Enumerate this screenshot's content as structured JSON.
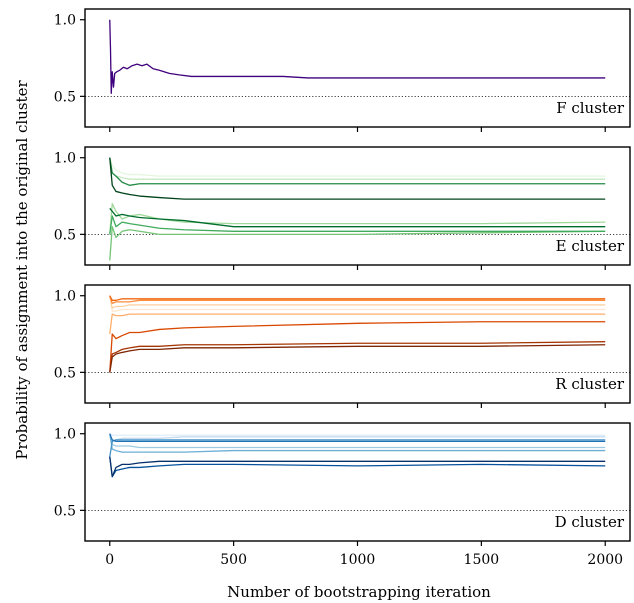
{
  "chart_data": [
    {
      "type": "line",
      "annotation": "F cluster",
      "colors": [
        "#3f007d"
      ],
      "xlim": [
        -100,
        2100
      ],
      "ylim": [
        0.3,
        1.07
      ],
      "yticks": [
        0.5,
        1.0
      ],
      "reference_line": 0.5,
      "series": [
        {
          "x": [
            0,
            3,
            6,
            10,
            15,
            20,
            28,
            40,
            55,
            70,
            90,
            110,
            130,
            150,
            175,
            200,
            240,
            280,
            330,
            400,
            500,
            600,
            700,
            800,
            900,
            1000,
            1100,
            1200,
            1300,
            1400,
            1500,
            1600,
            1700,
            1800,
            1900,
            2000
          ],
          "values": [
            1.0,
            0.8,
            0.52,
            0.66,
            0.56,
            0.65,
            0.66,
            0.67,
            0.69,
            0.68,
            0.7,
            0.71,
            0.7,
            0.71,
            0.68,
            0.67,
            0.65,
            0.64,
            0.63,
            0.63,
            0.63,
            0.63,
            0.63,
            0.62,
            0.62,
            0.62,
            0.62,
            0.62,
            0.62,
            0.62,
            0.62,
            0.62,
            0.62,
            0.62,
            0.62,
            0.62
          ]
        }
      ]
    },
    {
      "type": "line",
      "annotation": "E cluster",
      "colors": [
        "#e5f5e0",
        "#c7e9c0",
        "#a1d99b",
        "#74c476",
        "#41ab5d",
        "#238b45",
        "#006d2c",
        "#00441b"
      ],
      "xlim": [
        -100,
        2100
      ],
      "ylim": [
        0.3,
        1.07
      ],
      "yticks": [
        0.5,
        1.0
      ],
      "reference_line": 0.5,
      "series": [
        {
          "x": [
            0,
            10,
            25,
            50,
            80,
            120,
            200,
            300,
            500,
            1000,
            1500,
            2000
          ],
          "values": [
            1.0,
            0.95,
            0.92,
            0.9,
            0.89,
            0.89,
            0.88,
            0.88,
            0.88,
            0.88,
            0.88,
            0.88
          ]
        },
        {
          "x": [
            0,
            10,
            25,
            50,
            80,
            120,
            200,
            300,
            500,
            1000,
            1500,
            2000
          ],
          "values": [
            1.0,
            0.9,
            0.88,
            0.87,
            0.86,
            0.86,
            0.86,
            0.86,
            0.86,
            0.86,
            0.86,
            0.86
          ]
        },
        {
          "x": [
            0,
            10,
            25,
            50,
            80,
            120,
            200,
            300,
            500,
            1000,
            1500,
            2000
          ],
          "values": [
            0.5,
            0.7,
            0.65,
            0.6,
            0.62,
            0.63,
            0.6,
            0.58,
            0.57,
            0.57,
            0.57,
            0.58
          ]
        },
        {
          "x": [
            0,
            10,
            25,
            50,
            80,
            120,
            200,
            300,
            500,
            1000,
            1500,
            2000
          ],
          "values": [
            0.33,
            0.55,
            0.48,
            0.52,
            0.53,
            0.52,
            0.5,
            0.5,
            0.5,
            0.5,
            0.51,
            0.52
          ]
        },
        {
          "x": [
            0,
            10,
            25,
            50,
            80,
            120,
            200,
            300,
            500,
            1000,
            1500,
            2000
          ],
          "values": [
            0.5,
            0.62,
            0.55,
            0.58,
            0.57,
            0.56,
            0.54,
            0.53,
            0.52,
            0.52,
            0.52,
            0.52
          ]
        },
        {
          "x": [
            0,
            10,
            25,
            50,
            80,
            120,
            200,
            300,
            500,
            1000,
            1500,
            2000
          ],
          "values": [
            1.0,
            0.9,
            0.88,
            0.84,
            0.82,
            0.83,
            0.83,
            0.83,
            0.83,
            0.83,
            0.83,
            0.83
          ]
        },
        {
          "x": [
            0,
            10,
            25,
            50,
            80,
            120,
            200,
            300,
            500,
            1000,
            1500,
            2000
          ],
          "values": [
            0.67,
            0.65,
            0.62,
            0.63,
            0.62,
            0.61,
            0.6,
            0.59,
            0.55,
            0.55,
            0.55,
            0.55
          ]
        },
        {
          "x": [
            0,
            10,
            25,
            50,
            80,
            120,
            200,
            300,
            500,
            1000,
            1500,
            2000
          ],
          "values": [
            1.0,
            0.82,
            0.78,
            0.77,
            0.76,
            0.75,
            0.74,
            0.73,
            0.73,
            0.73,
            0.73,
            0.73
          ]
        }
      ]
    },
    {
      "type": "line",
      "annotation": "R cluster",
      "colors": [
        "#fee6ce",
        "#fdd0a2",
        "#fdae6b",
        "#fd8d3c",
        "#f16913",
        "#d94801",
        "#a63603",
        "#7f2704"
      ],
      "xlim": [
        -100,
        2100
      ],
      "ylim": [
        0.3,
        1.07
      ],
      "yticks": [
        0.5,
        1.0
      ],
      "reference_line": 0.5,
      "series": [
        {
          "x": [
            0,
            10,
            25,
            50,
            80,
            120,
            200,
            300,
            500,
            1000,
            1500,
            2000
          ],
          "values": [
            1.0,
            0.9,
            0.9,
            0.91,
            0.91,
            0.91,
            0.91,
            0.91,
            0.91,
            0.91,
            0.91,
            0.91
          ]
        },
        {
          "x": [
            0,
            10,
            25,
            50,
            80,
            120,
            200,
            300,
            500,
            1000,
            1500,
            2000
          ],
          "values": [
            1.0,
            0.92,
            0.93,
            0.93,
            0.94,
            0.94,
            0.94,
            0.94,
            0.94,
            0.94,
            0.94,
            0.94
          ]
        },
        {
          "x": [
            0,
            10,
            25,
            50,
            80,
            120,
            200,
            300,
            500,
            1000,
            1500,
            2000
          ],
          "values": [
            0.75,
            0.88,
            0.87,
            0.87,
            0.88,
            0.88,
            0.88,
            0.88,
            0.88,
            0.88,
            0.88,
            0.88
          ]
        },
        {
          "x": [
            0,
            10,
            25,
            50,
            80,
            120,
            200,
            300,
            500,
            1000,
            1500,
            2000
          ],
          "values": [
            1.0,
            0.95,
            0.96,
            0.96,
            0.96,
            0.97,
            0.97,
            0.97,
            0.97,
            0.97,
            0.97,
            0.97
          ]
        },
        {
          "x": [
            0,
            10,
            25,
            50,
            80,
            120,
            200,
            300,
            500,
            1000,
            1500,
            2000
          ],
          "values": [
            1.0,
            0.97,
            0.97,
            0.98,
            0.98,
            0.98,
            0.98,
            0.98,
            0.98,
            0.98,
            0.98,
            0.98
          ]
        },
        {
          "x": [
            0,
            10,
            25,
            50,
            80,
            120,
            200,
            300,
            500,
            1000,
            1500,
            2000
          ],
          "values": [
            0.5,
            0.75,
            0.72,
            0.74,
            0.76,
            0.76,
            0.78,
            0.79,
            0.8,
            0.82,
            0.83,
            0.83
          ]
        },
        {
          "x": [
            0,
            10,
            25,
            50,
            80,
            120,
            200,
            300,
            500,
            1000,
            1500,
            2000
          ],
          "values": [
            0.5,
            0.62,
            0.63,
            0.65,
            0.66,
            0.67,
            0.67,
            0.68,
            0.68,
            0.69,
            0.69,
            0.7
          ]
        },
        {
          "x": [
            0,
            10,
            25,
            50,
            80,
            120,
            200,
            300,
            500,
            1000,
            1500,
            2000
          ],
          "values": [
            0.5,
            0.6,
            0.62,
            0.63,
            0.64,
            0.65,
            0.65,
            0.66,
            0.66,
            0.67,
            0.67,
            0.68
          ]
        }
      ]
    },
    {
      "type": "line",
      "annotation": "D cluster",
      "colors": [
        "#deebf7",
        "#c6dbef",
        "#9ecae1",
        "#6baed6",
        "#4292c6",
        "#2171b5",
        "#08519c",
        "#08306b"
      ],
      "xlim": [
        -100,
        2100
      ],
      "ylim": [
        0.3,
        1.07
      ],
      "yticks": [
        0.5,
        1.0
      ],
      "reference_line": 0.5,
      "series": [
        {
          "x": [
            0,
            10,
            25,
            50,
            80,
            120,
            200,
            300,
            500,
            1000,
            1500,
            2000
          ],
          "values": [
            1.0,
            0.99,
            0.99,
            0.99,
            0.99,
            0.99,
            0.99,
            0.99,
            0.99,
            0.99,
            0.99,
            0.99
          ]
        },
        {
          "x": [
            0,
            10,
            25,
            50,
            80,
            120,
            200,
            300,
            500,
            1000,
            1500,
            2000
          ],
          "values": [
            1.0,
            0.95,
            0.96,
            0.97,
            0.97,
            0.97,
            0.97,
            0.98,
            0.98,
            0.98,
            0.98,
            0.98
          ]
        },
        {
          "x": [
            0,
            10,
            25,
            50,
            80,
            120,
            200,
            300,
            500,
            1000,
            1500,
            2000
          ],
          "values": [
            1.0,
            0.93,
            0.92,
            0.92,
            0.92,
            0.91,
            0.91,
            0.91,
            0.91,
            0.91,
            0.91,
            0.91
          ]
        },
        {
          "x": [
            0,
            10,
            25,
            50,
            80,
            120,
            200,
            300,
            500,
            1000,
            1500,
            2000
          ],
          "values": [
            1.0,
            0.9,
            0.89,
            0.88,
            0.88,
            0.88,
            0.88,
            0.88,
            0.89,
            0.89,
            0.89,
            0.89
          ]
        },
        {
          "x": [
            0,
            10,
            25,
            50,
            80,
            120,
            200,
            300,
            500,
            1000,
            1500,
            2000
          ],
          "values": [
            0.85,
            0.95,
            0.96,
            0.96,
            0.96,
            0.96,
            0.96,
            0.96,
            0.96,
            0.96,
            0.96,
            0.96
          ]
        },
        {
          "x": [
            0,
            10,
            25,
            50,
            80,
            120,
            200,
            300,
            500,
            1000,
            1500,
            2000
          ],
          "values": [
            1.0,
            0.96,
            0.95,
            0.95,
            0.95,
            0.95,
            0.95,
            0.95,
            0.95,
            0.95,
            0.95,
            0.95
          ]
        },
        {
          "x": [
            0,
            10,
            25,
            50,
            80,
            120,
            200,
            300,
            500,
            1000,
            1500,
            2000
          ],
          "values": [
            0.85,
            0.72,
            0.76,
            0.77,
            0.78,
            0.78,
            0.79,
            0.8,
            0.8,
            0.79,
            0.8,
            0.79
          ]
        },
        {
          "x": [
            0,
            10,
            25,
            50,
            80,
            120,
            200,
            300,
            500,
            1000,
            1500,
            2000
          ],
          "values": [
            0.85,
            0.72,
            0.78,
            0.8,
            0.8,
            0.81,
            0.82,
            0.82,
            0.82,
            0.82,
            0.82,
            0.82
          ]
        }
      ]
    }
  ],
  "axes": {
    "ylabel": "Probability of assignment into the original cluster",
    "xlabel": "Number of bootstrapping iteration",
    "xticks": [
      0,
      500,
      1000,
      1500,
      2000
    ],
    "xticklabels": [
      "0",
      "500",
      "1000",
      "1500",
      "2000"
    ],
    "yticklabels": [
      "0.5",
      "1.0"
    ]
  }
}
